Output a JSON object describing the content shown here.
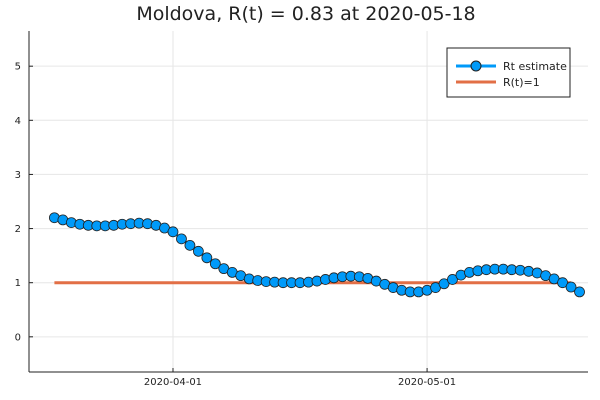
{
  "chart_data": {
    "type": "line",
    "title": "Moldova, R(t) = 0.83 at 2020-05-18",
    "xlabel": "",
    "ylabel": "",
    "x_start": "2020-03-18",
    "x_end": "2020-05-18",
    "xlim": [
      "2020-03-15",
      "2020-05-20"
    ],
    "ylim": [
      -0.65,
      5.65
    ],
    "x_ticks": [
      "2020-04-01",
      "2020-05-01"
    ],
    "y_ticks": [
      0,
      1,
      2,
      3,
      4,
      5
    ],
    "y_tick_labels": [
      "0",
      "1",
      "2",
      "3",
      "4",
      "5"
    ],
    "grid": true,
    "legend_position": "top-right",
    "series": [
      {
        "name": "Rt estimate",
        "color": "#009af9",
        "marker": "circle",
        "values": [
          2.2,
          2.16,
          2.11,
          2.08,
          2.06,
          2.05,
          2.05,
          2.06,
          2.08,
          2.09,
          2.1,
          2.09,
          2.06,
          2.01,
          1.94,
          1.81,
          1.69,
          1.58,
          1.46,
          1.35,
          1.26,
          1.19,
          1.13,
          1.07,
          1.04,
          1.02,
          1.01,
          1.0,
          1.0,
          1.0,
          1.01,
          1.03,
          1.06,
          1.09,
          1.11,
          1.12,
          1.11,
          1.08,
          1.03,
          0.97,
          0.91,
          0.86,
          0.83,
          0.83,
          0.86,
          0.91,
          0.98,
          1.06,
          1.14,
          1.19,
          1.22,
          1.24,
          1.25,
          1.25,
          1.24,
          1.23,
          1.21,
          1.18,
          1.13,
          1.07,
          1.0,
          0.92,
          0.83
        ]
      },
      {
        "name": "R(t)=1",
        "color": "#e26f46",
        "marker": "none",
        "values": [
          1,
          1
        ]
      }
    ]
  }
}
